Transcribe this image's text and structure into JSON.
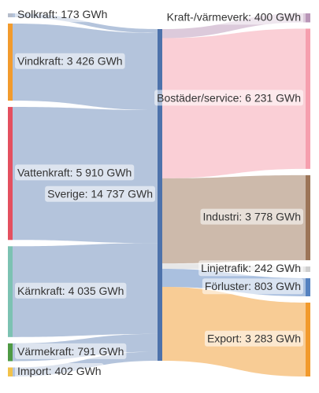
{
  "chart_data": {
    "type": "sankey",
    "sources": [
      {
        "label": "Solkraft: 173 GWh",
        "value": 173,
        "color": "#b4bccb"
      },
      {
        "label": "Vindkraft: 3 426 GWh",
        "value": 3426,
        "color": "#f29b2d"
      },
      {
        "label": "Vattenkraft: 5 910 GWh",
        "value": 5910,
        "color": "#e4505f"
      },
      {
        "label": "Kärnkraft: 4 035 GWh",
        "value": 4035,
        "color": "#7cc2b2"
      },
      {
        "label": "Värmekraft: 791 GWh",
        "value": 791,
        "color": "#4e9a44"
      },
      {
        "label": "Import: 402 GWh",
        "value": 402,
        "color": "#f2c24a"
      }
    ],
    "hub": {
      "label": "Sverige: 14 737 GWh",
      "value": 14737,
      "color": "#4d72ab"
    },
    "targets": [
      {
        "label": "Kraft-/värmeverk: 400 GWh",
        "value": 400,
        "color": "#b996b8"
      },
      {
        "label": "Bostäder/service: 6 231 GWh",
        "value": 6231,
        "color": "#f69fae"
      },
      {
        "label": "Industri: 3 778 GWh",
        "value": 3778,
        "color": "#9c7558"
      },
      {
        "label": "Linjetrafik: 242 GWh",
        "value": 242,
        "color": "#cfcfcf"
      },
      {
        "label": "Förluster: 803 GWh",
        "value": 803,
        "color": "#5582c0"
      },
      {
        "label": "Export: 3 283 GWh",
        "value": 3283,
        "color": "#f29a2c"
      }
    ]
  }
}
